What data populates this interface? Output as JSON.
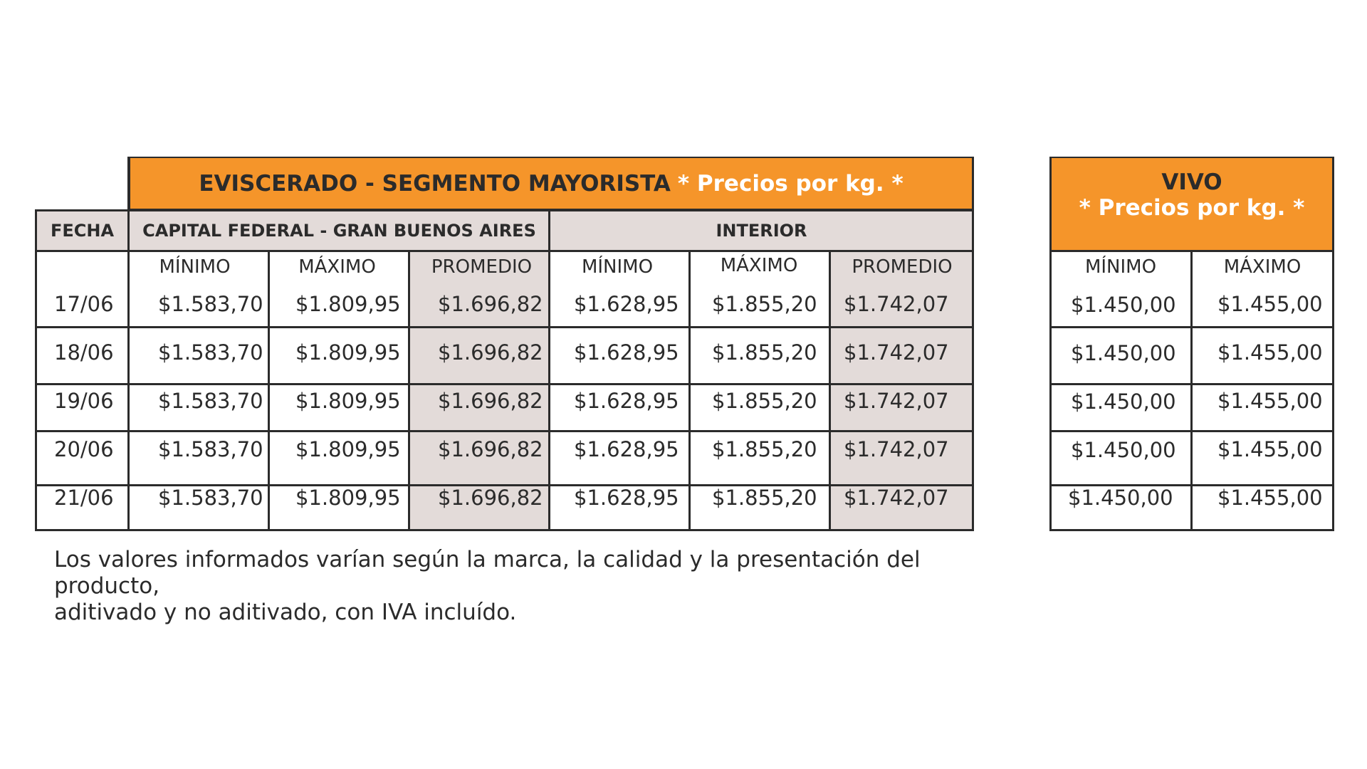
{
  "main_table": {
    "title": "EVISCERADO - SEGMENTO MAYORISTA",
    "title_note": "* Precios por kg. *",
    "fecha_header": "FECHA",
    "group_headers": [
      "CAPITAL FEDERAL - GRAN BUENOS AIRES",
      "INTERIOR"
    ],
    "sub_headers": [
      "MÍNIMO",
      "MÁXIMO",
      "PROMEDIO",
      "MÍNIMO",
      "MÁXIMO",
      "PROMEDIO"
    ],
    "rows": [
      {
        "fecha": "17/06",
        "values": [
          "$1.583,70",
          "$1.809,95",
          "$1.696,82",
          "$1.628,95",
          "$1.855,20",
          "$1.742,07"
        ]
      },
      {
        "fecha": "18/06",
        "values": [
          "$1.583,70",
          "$1.809,95",
          "$1.696,82",
          "$1.628,95",
          "$1.855,20",
          "$1.742,07"
        ]
      },
      {
        "fecha": "19/06",
        "values": [
          "$1.583,70",
          "$1.809,95",
          "$1.696,82",
          "$1.628,95",
          "$1.855,20",
          "$1.742,07"
        ]
      },
      {
        "fecha": "20/06",
        "values": [
          "$1.583,70",
          "$1.809,95",
          "$1.696,82",
          "$1.628,95",
          "$1.855,20",
          "$1.742,07"
        ]
      },
      {
        "fecha": "21/06",
        "values": [
          "$1.583,70",
          "$1.809,95",
          "$1.696,82",
          "$1.628,95",
          "$1.855,20",
          "$1.742,07"
        ]
      }
    ]
  },
  "vivo_table": {
    "title": "VIVO",
    "title_note": "* Precios por kg. *",
    "sub_headers": [
      "MÍNIMO",
      "MÁXIMO"
    ],
    "rows": [
      [
        "$1.450,00",
        "$1.455,00"
      ],
      [
        "$1.450,00",
        "$1.455,00"
      ],
      [
        "$1.450,00",
        "$1.455,00"
      ],
      [
        "$1.450,00",
        "$1.455,00"
      ],
      [
        "$1.450,00",
        "$1.455,00"
      ]
    ]
  },
  "footnote": {
    "line1": "Los valores informados varían según la marca, la calidad y la presentación del producto,",
    "line2": "aditivado y no aditivado, con IVA incluído."
  },
  "colors": {
    "header_orange": "#f5952a",
    "highlight_grey": "#e3dbd9",
    "border": "#2b2b2b"
  }
}
